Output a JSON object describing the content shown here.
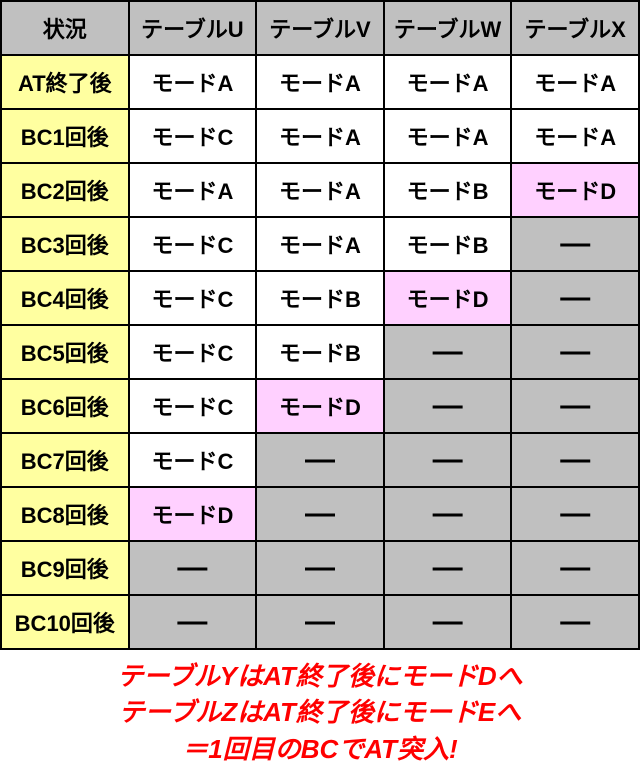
{
  "colors": {
    "header_bg": "#c0c0c0",
    "rowhead_bg": "#ffffa0",
    "white_bg": "#ffffff",
    "gray_bg": "#c0c0c0",
    "pink_bg": "#ffd0ff",
    "border": "#000000",
    "footer_text": "#ff0000"
  },
  "columns": [
    "状況",
    "テーブルU",
    "テーブルV",
    "テーブルW",
    "テーブルX"
  ],
  "rows": [
    {
      "label": "AT終了後",
      "cells": [
        {
          "text": "モードA",
          "bg": "white"
        },
        {
          "text": "モードA",
          "bg": "white"
        },
        {
          "text": "モードA",
          "bg": "white"
        },
        {
          "text": "モードA",
          "bg": "white"
        }
      ]
    },
    {
      "label": "BC1回後",
      "cells": [
        {
          "text": "モードC",
          "bg": "white"
        },
        {
          "text": "モードA",
          "bg": "white"
        },
        {
          "text": "モードA",
          "bg": "white"
        },
        {
          "text": "モードA",
          "bg": "white"
        }
      ]
    },
    {
      "label": "BC2回後",
      "cells": [
        {
          "text": "モードA",
          "bg": "white"
        },
        {
          "text": "モードA",
          "bg": "white"
        },
        {
          "text": "モードB",
          "bg": "white"
        },
        {
          "text": "モードD",
          "bg": "pink"
        }
      ]
    },
    {
      "label": "BC3回後",
      "cells": [
        {
          "text": "モードC",
          "bg": "white"
        },
        {
          "text": "モードA",
          "bg": "white"
        },
        {
          "text": "モードB",
          "bg": "white"
        },
        {
          "text": "—",
          "bg": "gray",
          "dash": true
        }
      ]
    },
    {
      "label": "BC4回後",
      "cells": [
        {
          "text": "モードC",
          "bg": "white"
        },
        {
          "text": "モードB",
          "bg": "white"
        },
        {
          "text": "モードD",
          "bg": "pink"
        },
        {
          "text": "—",
          "bg": "gray",
          "dash": true
        }
      ]
    },
    {
      "label": "BC5回後",
      "cells": [
        {
          "text": "モードC",
          "bg": "white"
        },
        {
          "text": "モードB",
          "bg": "white"
        },
        {
          "text": "—",
          "bg": "gray",
          "dash": true
        },
        {
          "text": "—",
          "bg": "gray",
          "dash": true
        }
      ]
    },
    {
      "label": "BC6回後",
      "cells": [
        {
          "text": "モードC",
          "bg": "white"
        },
        {
          "text": "モードD",
          "bg": "pink"
        },
        {
          "text": "—",
          "bg": "gray",
          "dash": true
        },
        {
          "text": "—",
          "bg": "gray",
          "dash": true
        }
      ]
    },
    {
      "label": "BC7回後",
      "cells": [
        {
          "text": "モードC",
          "bg": "white"
        },
        {
          "text": "—",
          "bg": "gray",
          "dash": true
        },
        {
          "text": "—",
          "bg": "gray",
          "dash": true
        },
        {
          "text": "—",
          "bg": "gray",
          "dash": true
        }
      ]
    },
    {
      "label": "BC8回後",
      "cells": [
        {
          "text": "モードD",
          "bg": "pink"
        },
        {
          "text": "—",
          "bg": "gray",
          "dash": true
        },
        {
          "text": "—",
          "bg": "gray",
          "dash": true
        },
        {
          "text": "—",
          "bg": "gray",
          "dash": true
        }
      ]
    },
    {
      "label": "BC9回後",
      "cells": [
        {
          "text": "—",
          "bg": "gray",
          "dash": true
        },
        {
          "text": "—",
          "bg": "gray",
          "dash": true
        },
        {
          "text": "—",
          "bg": "gray",
          "dash": true
        },
        {
          "text": "—",
          "bg": "gray",
          "dash": true
        }
      ]
    },
    {
      "label": "BC10回後",
      "cells": [
        {
          "text": "—",
          "bg": "gray",
          "dash": true
        },
        {
          "text": "—",
          "bg": "gray",
          "dash": true
        },
        {
          "text": "—",
          "bg": "gray",
          "dash": true
        },
        {
          "text": "—",
          "bg": "gray",
          "dash": true
        }
      ]
    }
  ],
  "footer": {
    "line1": "テーブルYはAT終了後にモードDへ",
    "line2": "テーブルZはAT終了後にモードEへ",
    "line3": "＝1回目のBCでAT突入!"
  }
}
